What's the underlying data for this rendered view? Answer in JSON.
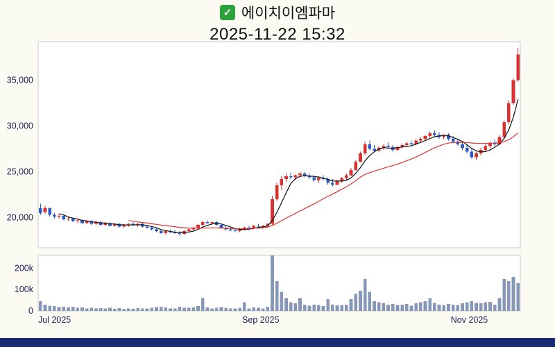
{
  "header": {
    "check_glyph": "✓",
    "check_color": "#2aa33a",
    "title": "에이치이엠파마",
    "timestamp": "2025-11-22 15:32"
  },
  "chart_data": {
    "type": "candlestick",
    "title": "에이치이엠파마",
    "subtitle": "2025-11-22 15:32",
    "grid": false,
    "legend_position": "none",
    "x_ticks": [
      {
        "index": 0,
        "label": "Jul 2025"
      },
      {
        "index": 44,
        "label": "Sep 2025"
      },
      {
        "index": 89,
        "label": "Nov 2025"
      }
    ],
    "price_axis": {
      "min": 16700,
      "max": 39200,
      "ticks": [
        {
          "value": 20000,
          "label": "20,000"
        },
        {
          "value": 25000,
          "label": "25,000"
        },
        {
          "value": 30000,
          "label": "30,000"
        },
        {
          "value": 35000,
          "label": "35,000"
        }
      ]
    },
    "volume_axis": {
      "min": 0,
      "max": 260000,
      "ticks": [
        {
          "value": 0,
          "label": "0"
        },
        {
          "value": 100000,
          "label": "100k"
        },
        {
          "value": 200000,
          "label": "200k"
        }
      ]
    },
    "moving_averages": [
      {
        "period": 5,
        "color": "#111111"
      },
      {
        "period": 20,
        "color": "#e03131"
      }
    ],
    "colors": {
      "up": "#d93232",
      "down": "#2e5cc5",
      "volume": "#8797b8",
      "axis_text": "#20205a",
      "plot_border": "#c8c8c8",
      "plot_background": "#ffffff",
      "page_background": "#fbfbf4",
      "footer_bar": "#1a2a75"
    },
    "candles_format": [
      "open",
      "high",
      "low",
      "close",
      "volume"
    ],
    "candles": [
      [
        21000,
        21500,
        20300,
        20500,
        45000
      ],
      [
        20600,
        21300,
        20400,
        21000,
        30000
      ],
      [
        21000,
        21100,
        20100,
        20300,
        25000
      ],
      [
        20300,
        20500,
        19900,
        20100,
        22000
      ],
      [
        20100,
        20400,
        19900,
        20200,
        18000
      ],
      [
        20200,
        20300,
        19700,
        19800,
        20000
      ],
      [
        19800,
        20100,
        19600,
        19900,
        16000
      ],
      [
        19900,
        20000,
        19500,
        19600,
        19000
      ],
      [
        19600,
        19900,
        19400,
        19700,
        14000
      ],
      [
        19700,
        19800,
        19300,
        19400,
        17000
      ],
      [
        19400,
        19700,
        19300,
        19600,
        12000
      ],
      [
        19600,
        19700,
        19200,
        19300,
        15000
      ],
      [
        19300,
        19600,
        19200,
        19500,
        11000
      ],
      [
        19500,
        19600,
        19100,
        19200,
        13000
      ],
      [
        19200,
        19500,
        19100,
        19400,
        12000
      ],
      [
        19400,
        19500,
        19000,
        19100,
        15000
      ],
      [
        19100,
        19400,
        19000,
        19300,
        10000
      ],
      [
        19300,
        19400,
        18900,
        19000,
        13000
      ],
      [
        19000,
        19300,
        18900,
        19200,
        9000
      ],
      [
        19200,
        19400,
        19000,
        19300,
        12000
      ],
      [
        19300,
        19500,
        19100,
        19200,
        10000
      ],
      [
        19200,
        19400,
        19000,
        19300,
        13000
      ],
      [
        19300,
        19400,
        18900,
        19000,
        11000
      ],
      [
        19000,
        19200,
        18800,
        18900,
        12000
      ],
      [
        18900,
        19100,
        18600,
        18700,
        15000
      ],
      [
        18700,
        18900,
        18400,
        18500,
        18000
      ],
      [
        18500,
        18700,
        18200,
        18300,
        20000
      ],
      [
        18300,
        18600,
        18100,
        18500,
        16000
      ],
      [
        18500,
        18700,
        18300,
        18400,
        11000
      ],
      [
        18400,
        18600,
        18200,
        18300,
        12000
      ],
      [
        18300,
        18500,
        18000,
        18200,
        19000
      ],
      [
        18200,
        18600,
        18100,
        18500,
        14000
      ],
      [
        18500,
        18800,
        18400,
        18700,
        15000
      ],
      [
        18700,
        19000,
        18600,
        18900,
        16000
      ],
      [
        18900,
        19300,
        18800,
        19200,
        22000
      ],
      [
        19200,
        19600,
        19100,
        19500,
        60000
      ],
      [
        19500,
        19700,
        19300,
        19400,
        16000
      ],
      [
        19400,
        19600,
        19200,
        19500,
        12000
      ],
      [
        19500,
        19600,
        19100,
        19200,
        15000
      ],
      [
        19200,
        19300,
        18800,
        18900,
        18000
      ],
      [
        18900,
        19100,
        18600,
        18700,
        14000
      ],
      [
        18700,
        18900,
        18500,
        18600,
        12000
      ],
      [
        18600,
        18800,
        18400,
        18500,
        11000
      ],
      [
        18500,
        18900,
        18400,
        18800,
        14000
      ],
      [
        18800,
        19000,
        18600,
        18900,
        40000
      ],
      [
        18900,
        19100,
        18700,
        18800,
        11000
      ],
      [
        18800,
        19200,
        18700,
        19100,
        16000
      ],
      [
        19100,
        19300,
        18900,
        19000,
        14000
      ],
      [
        19000,
        19200,
        18800,
        19100,
        12000
      ],
      [
        19100,
        19400,
        19000,
        19300,
        19000
      ],
      [
        19300,
        22400,
        19200,
        22000,
        260000
      ],
      [
        22000,
        23800,
        21800,
        23500,
        140000
      ],
      [
        23500,
        24500,
        23000,
        24200,
        90000
      ],
      [
        24200,
        24800,
        23900,
        24500,
        60000
      ],
      [
        24500,
        24900,
        24200,
        24400,
        40000
      ],
      [
        24400,
        24700,
        24100,
        24600,
        35000
      ],
      [
        24600,
        25000,
        24300,
        24800,
        60000
      ],
      [
        24800,
        25000,
        24400,
        24500,
        30000
      ],
      [
        24500,
        24800,
        24200,
        24400,
        25000
      ],
      [
        24400,
        24600,
        23900,
        24100,
        30000
      ],
      [
        24100,
        24500,
        23800,
        24300,
        28000
      ],
      [
        24300,
        24600,
        24000,
        24200,
        22000
      ],
      [
        24200,
        24400,
        23600,
        23800,
        55000
      ],
      [
        23800,
        24200,
        23400,
        23600,
        30000
      ],
      [
        23600,
        24100,
        23500,
        24000,
        26000
      ],
      [
        24000,
        24400,
        23800,
        24300,
        28000
      ],
      [
        24300,
        24800,
        24100,
        24600,
        30000
      ],
      [
        24600,
        25400,
        24500,
        25200,
        55000
      ],
      [
        25200,
        26300,
        25100,
        26100,
        80000
      ],
      [
        26100,
        27200,
        26000,
        27000,
        95000
      ],
      [
        27000,
        28300,
        26800,
        28000,
        150000
      ],
      [
        28000,
        28400,
        27300,
        27500,
        90000
      ],
      [
        27500,
        27900,
        27100,
        27300,
        45000
      ],
      [
        27300,
        27800,
        27200,
        27600,
        40000
      ],
      [
        27600,
        28000,
        27400,
        27800,
        38000
      ],
      [
        27800,
        28200,
        27500,
        27700,
        30000
      ],
      [
        27700,
        27900,
        27200,
        27400,
        32000
      ],
      [
        27400,
        27800,
        27300,
        27700,
        28000
      ],
      [
        27700,
        28100,
        27500,
        27900,
        30000
      ],
      [
        27900,
        28300,
        27700,
        28100,
        33000
      ],
      [
        28100,
        28400,
        27800,
        28000,
        25000
      ],
      [
        28000,
        28500,
        27900,
        28400,
        35000
      ],
      [
        28400,
        28800,
        28200,
        28600,
        40000
      ],
      [
        28600,
        29000,
        28400,
        28900,
        45000
      ],
      [
        28900,
        29400,
        28700,
        29200,
        60000
      ],
      [
        29200,
        29500,
        28800,
        29000,
        38000
      ],
      [
        29000,
        29300,
        28600,
        28800,
        30000
      ],
      [
        28800,
        29100,
        28500,
        29000,
        28000
      ],
      [
        29000,
        29200,
        28400,
        28600,
        32000
      ],
      [
        28600,
        28900,
        28100,
        28300,
        30000
      ],
      [
        28300,
        28600,
        27800,
        28000,
        28000
      ],
      [
        28000,
        28300,
        27400,
        27600,
        35000
      ],
      [
        27600,
        27900,
        27000,
        27200,
        40000
      ],
      [
        27200,
        27500,
        26400,
        26600,
        45000
      ],
      [
        26600,
        27200,
        26300,
        27000,
        38000
      ],
      [
        27000,
        27600,
        26800,
        27400,
        35000
      ],
      [
        27400,
        28000,
        27200,
        27800,
        40000
      ],
      [
        27800,
        28300,
        27500,
        28100,
        42000
      ],
      [
        28100,
        28500,
        27800,
        28000,
        30000
      ],
      [
        28000,
        29000,
        27900,
        28800,
        60000
      ],
      [
        28800,
        30600,
        28600,
        30400,
        150000
      ],
      [
        30400,
        32800,
        30200,
        32500,
        140000
      ],
      [
        32500,
        35200,
        32300,
        35000,
        160000
      ],
      [
        35000,
        38500,
        34800,
        37800,
        130000
      ]
    ]
  }
}
